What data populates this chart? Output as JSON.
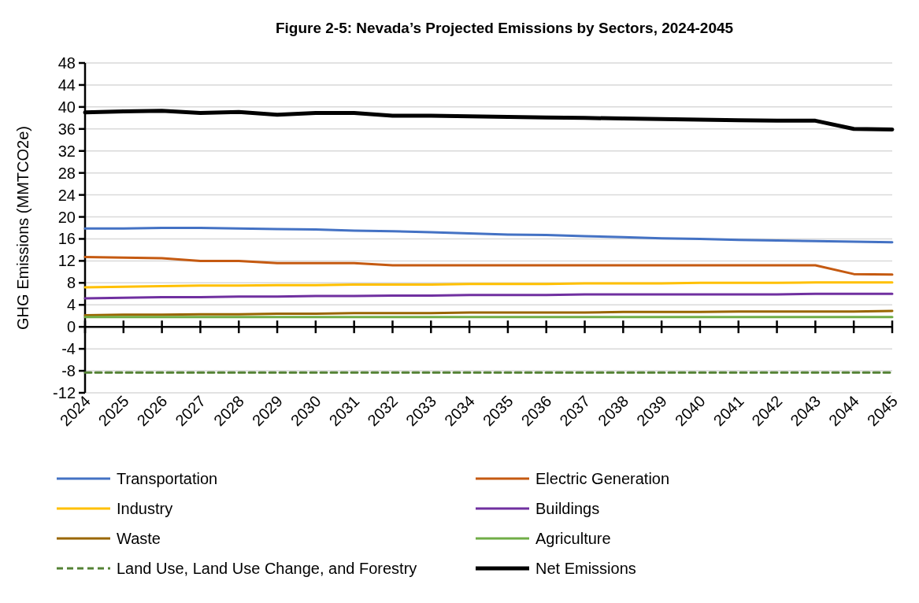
{
  "chart_data": {
    "type": "line",
    "title": "Figure 2-5: Nevada’s Projected Emissions by Sectors, 2024-2045",
    "ylabel": "GHG Emissions (MMTCO2e)",
    "categories": [
      "2024",
      "2025",
      "2026",
      "2027",
      "2028",
      "2029",
      "2030",
      "2031",
      "2032",
      "2033",
      "2034",
      "2035",
      "2036",
      "2037",
      "2038",
      "2039",
      "2040",
      "2041",
      "2042",
      "2043",
      "2044",
      "2045"
    ],
    "ylim": [
      -12,
      48
    ],
    "yticks": [
      -12,
      -8,
      -4,
      0,
      4,
      8,
      12,
      16,
      20,
      24,
      28,
      32,
      36,
      40,
      44,
      48
    ],
    "grid": "y",
    "legend": "bottom",
    "line_style": "solid",
    "marker": "none",
    "series": [
      {
        "name": "Transportation",
        "color": "#4472c4",
        "values": [
          17.9,
          17.9,
          18.0,
          18.0,
          17.9,
          17.8,
          17.7,
          17.5,
          17.4,
          17.2,
          17.0,
          16.8,
          16.7,
          16.5,
          16.3,
          16.1,
          16.0,
          15.8,
          15.7,
          15.6,
          15.5,
          15.4
        ]
      },
      {
        "name": "Electric Generation",
        "color": "#c55a11",
        "values": [
          12.7,
          12.6,
          12.5,
          12.0,
          12.0,
          11.6,
          11.6,
          11.6,
          11.2,
          11.2,
          11.2,
          11.2,
          11.2,
          11.2,
          11.2,
          11.2,
          11.2,
          11.2,
          11.2,
          11.2,
          9.6,
          9.5
        ]
      },
      {
        "name": "Industry",
        "color": "#ffc000",
        "values": [
          7.2,
          7.3,
          7.4,
          7.5,
          7.5,
          7.6,
          7.6,
          7.7,
          7.7,
          7.7,
          7.8,
          7.8,
          7.8,
          7.9,
          7.9,
          7.9,
          8.0,
          8.0,
          8.0,
          8.1,
          8.1,
          8.1
        ]
      },
      {
        "name": "Buildings",
        "color": "#7030a0",
        "values": [
          5.2,
          5.3,
          5.4,
          5.4,
          5.5,
          5.5,
          5.6,
          5.6,
          5.7,
          5.7,
          5.8,
          5.8,
          5.8,
          5.9,
          5.9,
          5.9,
          5.9,
          5.9,
          5.9,
          6.0,
          6.0,
          6.0
        ]
      },
      {
        "name": "Waste",
        "color": "#996600",
        "values": [
          2.1,
          2.2,
          2.2,
          2.3,
          2.3,
          2.4,
          2.4,
          2.5,
          2.5,
          2.5,
          2.6,
          2.6,
          2.6,
          2.6,
          2.7,
          2.7,
          2.7,
          2.8,
          2.8,
          2.8,
          2.8,
          2.9
        ]
      },
      {
        "name": "Agriculture",
        "color": "#70ad47",
        "values": [
          1.8,
          1.8,
          1.8,
          1.8,
          1.8,
          1.8,
          1.8,
          1.8,
          1.8,
          1.8,
          1.8,
          1.8,
          1.8,
          1.8,
          1.8,
          1.8,
          1.8,
          1.8,
          1.8,
          1.8,
          1.8,
          1.8
        ]
      },
      {
        "name": "Land Use, Land Use Change, and Forestry",
        "color": "#548235",
        "line_style": "dashed",
        "values": [
          -8.3,
          -8.3,
          -8.3,
          -8.3,
          -8.3,
          -8.3,
          -8.3,
          -8.3,
          -8.3,
          -8.3,
          -8.3,
          -8.3,
          -8.3,
          -8.3,
          -8.3,
          -8.3,
          -8.3,
          -8.3,
          -8.3,
          -8.3,
          -8.3,
          -8.3
        ]
      },
      {
        "name": "Net Emissions",
        "color": "#000000",
        "values": [
          39.0,
          39.2,
          39.3,
          38.9,
          39.1,
          38.6,
          38.9,
          38.9,
          38.4,
          38.4,
          38.3,
          38.2,
          38.1,
          38.0,
          37.9,
          37.8,
          37.7,
          37.6,
          37.5,
          37.5,
          36.0,
          35.9
        ]
      }
    ]
  }
}
